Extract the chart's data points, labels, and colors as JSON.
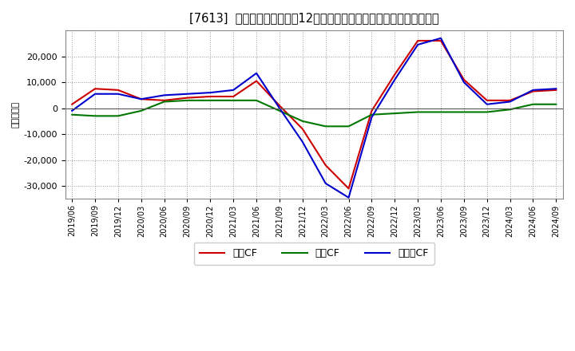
{
  "title": "[7613]  キャッシュフローの12か月移動合計の対前年同期増減額の推移",
  "ylabel": "（百万円）",
  "background_color": "#ffffff",
  "plot_bg_color": "#ffffff",
  "grid_color": "#999999",
  "x_labels": [
    "2019/06",
    "2019/09",
    "2019/12",
    "2020/03",
    "2020/06",
    "2020/09",
    "2020/12",
    "2021/03",
    "2021/06",
    "2021/09",
    "2021/12",
    "2022/03",
    "2022/06",
    "2022/09",
    "2022/12",
    "2023/03",
    "2023/06",
    "2023/09",
    "2023/12",
    "2024/03",
    "2024/06",
    "2024/09"
  ],
  "operating_cf": [
    1500,
    7500,
    7000,
    3500,
    3000,
    4000,
    4500,
    4500,
    10500,
    1000,
    -8000,
    -22000,
    -31000,
    -1000,
    13000,
    26000,
    26000,
    11000,
    3000,
    3000,
    6500,
    7000
  ],
  "investing_cf": [
    -2500,
    -3000,
    -3000,
    -1000,
    2500,
    3000,
    3000,
    3000,
    3000,
    -1000,
    -5000,
    -7000,
    -7000,
    -2500,
    -2000,
    -1500,
    -1500,
    -1500,
    -1500,
    -500,
    1500,
    1500
  ],
  "free_cf": [
    -1000,
    5500,
    5500,
    3500,
    5000,
    5500,
    6000,
    7000,
    13500,
    0,
    -13000,
    -29000,
    -34500,
    -3500,
    11000,
    24500,
    27000,
    10000,
    1500,
    2500,
    7000,
    7500
  ],
  "operating_color": "#cc0000",
  "investing_color": "#007700",
  "free_color": "#0000cc",
  "ylim": [
    -35000,
    30000
  ],
  "yticks": [
    -30000,
    -20000,
    -10000,
    0,
    10000,
    20000
  ],
  "legend_labels": [
    "営業CF",
    "投資CF",
    "フリーCF"
  ]
}
